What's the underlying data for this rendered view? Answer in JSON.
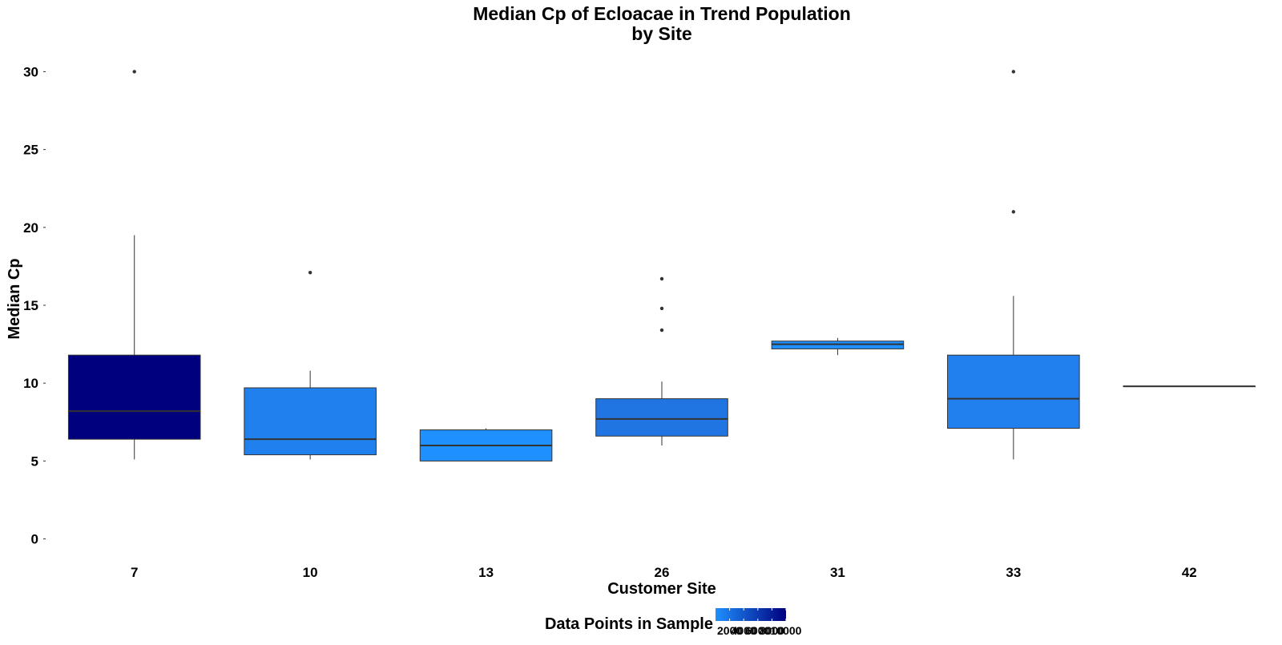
{
  "chart_data": {
    "type": "boxplot",
    "title_line1": "Median Cp of Ecloacae in Trend Population",
    "title_line2": "by Site",
    "xlabel": "Customer Site",
    "ylabel": "Median Cp",
    "ylim": [
      -1,
      31
    ],
    "yticks": [
      0,
      5,
      10,
      15,
      20,
      25,
      30
    ],
    "grid": false,
    "legend": {
      "title": "Data Points in Sample",
      "placement": "bottom",
      "range": [
        0,
        10000
      ],
      "tick_labels": [
        "2000",
        "4000",
        "6000",
        "8000",
        "10000"
      ],
      "tick_values": [
        2000,
        4000,
        6000,
        8000,
        10000
      ],
      "color_low": "#1E90FF",
      "color_high": "#00007F"
    },
    "categories": [
      "7",
      "10",
      "13",
      "26",
      "31",
      "33",
      "42"
    ],
    "boxes": [
      {
        "site": "7",
        "whisker_low": 5.1,
        "q1": 6.4,
        "median": 8.2,
        "q3": 11.8,
        "whisker_high": 19.5,
        "outliers": [
          30.0
        ],
        "fill": "#00007F"
      },
      {
        "site": "10",
        "whisker_low": 5.1,
        "q1": 5.4,
        "median": 6.4,
        "q3": 9.7,
        "whisker_high": 10.8,
        "outliers": [
          17.1
        ],
        "fill": "#2081EE"
      },
      {
        "site": "13",
        "whisker_low": 5.0,
        "q1": 5.0,
        "median": 6.0,
        "q3": 7.0,
        "whisker_high": 7.1,
        "outliers": [],
        "fill": "#1E90FF"
      },
      {
        "site": "26",
        "whisker_low": 6.0,
        "q1": 6.6,
        "median": 7.7,
        "q3": 9.0,
        "whisker_high": 10.1,
        "outliers": [
          13.4,
          14.8,
          16.7
        ],
        "fill": "#2075E3"
      },
      {
        "site": "31",
        "whisker_low": 11.8,
        "q1": 12.2,
        "median": 12.5,
        "q3": 12.7,
        "whisker_high": 12.9,
        "outliers": [],
        "fill": "#1E90FF"
      },
      {
        "site": "33",
        "whisker_low": 5.1,
        "q1": 7.1,
        "median": 9.0,
        "q3": 11.8,
        "whisker_high": 15.6,
        "outliers": [
          21.0,
          30.0
        ],
        "fill": "#2280EE"
      },
      {
        "site": "42",
        "whisker_low": 9.8,
        "q1": 9.8,
        "median": 9.8,
        "q3": 9.8,
        "whisker_high": 9.8,
        "outliers": [],
        "fill": "#1E90FF"
      }
    ]
  }
}
